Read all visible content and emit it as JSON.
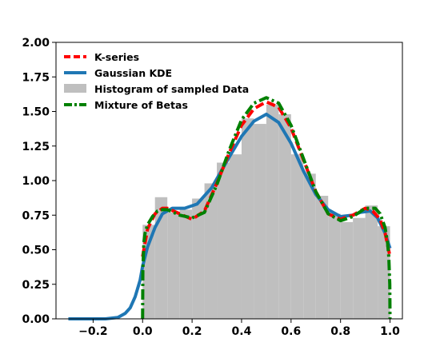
{
  "chart_data": {
    "type": "line",
    "title": "",
    "xlabel": "",
    "ylabel": "",
    "xlim": [
      -0.35,
      1.05
    ],
    "ylim": [
      0,
      2.0
    ],
    "grid": false,
    "legend_placement": "top-left",
    "x_ticks": [
      -0.2,
      0.0,
      0.2,
      0.4,
      0.6,
      0.8,
      1.0
    ],
    "x_tick_labels": [
      "−0.2",
      "0.0",
      "0.2",
      "0.4",
      "0.6",
      "0.8",
      "1.0"
    ],
    "y_ticks": [
      0.0,
      0.25,
      0.5,
      0.75,
      1.0,
      1.25,
      1.5,
      1.75,
      2.0
    ],
    "y_tick_labels": [
      "0.00",
      "0.25",
      "0.50",
      "0.75",
      "1.00",
      "1.25",
      "1.50",
      "1.75",
      "2.00"
    ],
    "histogram": {
      "name": "Histogram of sampled Data",
      "color": "#bfbfbf",
      "bin_edges": [
        0.0,
        0.05,
        0.1,
        0.15,
        0.2,
        0.25,
        0.3,
        0.35,
        0.4,
        0.45,
        0.5,
        0.55,
        0.6,
        0.65,
        0.7,
        0.75,
        0.8,
        0.85,
        0.9,
        0.95,
        1.0
      ],
      "heights": [
        0.68,
        0.88,
        0.77,
        0.79,
        0.87,
        0.98,
        1.13,
        1.19,
        1.45,
        1.41,
        1.55,
        1.48,
        1.19,
        1.05,
        0.89,
        0.76,
        0.7,
        0.73,
        0.82,
        0.67
      ]
    },
    "series": [
      {
        "name": "K-series",
        "color": "#ff0000",
        "style": "dashed",
        "x": [
          0.0,
          0.02,
          0.05,
          0.08,
          0.1,
          0.15,
          0.2,
          0.25,
          0.3,
          0.35,
          0.4,
          0.45,
          0.5,
          0.55,
          0.6,
          0.65,
          0.7,
          0.75,
          0.8,
          0.85,
          0.9,
          0.93,
          0.96,
          0.98,
          1.0
        ],
        "y": [
          0.45,
          0.65,
          0.76,
          0.8,
          0.8,
          0.76,
          0.72,
          0.78,
          0.98,
          1.2,
          1.4,
          1.52,
          1.57,
          1.53,
          1.38,
          1.15,
          0.92,
          0.76,
          0.72,
          0.75,
          0.8,
          0.78,
          0.72,
          0.62,
          0.45
        ]
      },
      {
        "name": "Gaussian KDE",
        "color": "#1f77b4",
        "style": "solid",
        "x": [
          -0.3,
          -0.15,
          -0.1,
          -0.07,
          -0.05,
          -0.03,
          -0.01,
          0.0,
          0.02,
          0.05,
          0.08,
          0.12,
          0.17,
          0.22,
          0.28,
          0.35,
          0.4,
          0.45,
          0.5,
          0.55,
          0.6,
          0.65,
          0.7,
          0.75,
          0.8,
          0.85,
          0.88,
          0.92,
          0.95,
          0.98,
          1.0
        ],
        "y": [
          0.0,
          0.0,
          0.01,
          0.04,
          0.08,
          0.16,
          0.28,
          0.38,
          0.52,
          0.66,
          0.76,
          0.8,
          0.8,
          0.83,
          0.95,
          1.17,
          1.32,
          1.43,
          1.48,
          1.42,
          1.27,
          1.07,
          0.9,
          0.79,
          0.74,
          0.75,
          0.77,
          0.78,
          0.73,
          0.62,
          0.51
        ]
      },
      {
        "name": "Mixture of Betas",
        "color": "#008000",
        "style": "dashdot",
        "x": [
          0.0,
          0.001,
          0.005,
          0.01,
          0.02,
          0.04,
          0.06,
          0.08,
          0.1,
          0.15,
          0.2,
          0.25,
          0.3,
          0.35,
          0.4,
          0.45,
          0.5,
          0.55,
          0.6,
          0.65,
          0.7,
          0.75,
          0.8,
          0.85,
          0.9,
          0.94,
          0.96,
          0.98,
          0.99,
          0.995,
          0.999,
          1.0
        ],
        "y": [
          0.0,
          0.35,
          0.55,
          0.62,
          0.68,
          0.74,
          0.78,
          0.79,
          0.79,
          0.75,
          0.73,
          0.77,
          0.97,
          1.22,
          1.44,
          1.56,
          1.6,
          1.56,
          1.4,
          1.16,
          0.92,
          0.76,
          0.71,
          0.74,
          0.8,
          0.8,
          0.76,
          0.66,
          0.55,
          0.45,
          0.25,
          0.0
        ]
      }
    ]
  },
  "legend": {
    "items": [
      {
        "label": "K-series",
        "color": "#ff0000",
        "style": "dashed"
      },
      {
        "label": "Gaussian KDE",
        "color": "#1f77b4",
        "style": "solid"
      },
      {
        "label": "Histogram of sampled Data",
        "color": "#bfbfbf",
        "style": "patch"
      },
      {
        "label": "Mixture of Betas",
        "color": "#008000",
        "style": "dashdot"
      }
    ]
  }
}
